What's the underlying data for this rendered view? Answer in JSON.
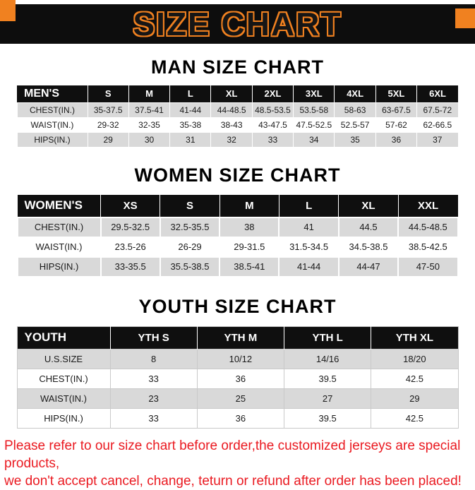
{
  "banner": {
    "title": "SIZE CHART"
  },
  "sections": [
    {
      "heading": "MAN SIZE CHART",
      "table": {
        "header": [
          "MEN'S",
          "S",
          "M",
          "L",
          "XL",
          "2XL",
          "3XL",
          "4XL",
          "5XL",
          "6XL"
        ],
        "rows": [
          [
            "CHEST(IN.)",
            "35-37.5",
            "37.5-41",
            "41-44",
            "44-48.5",
            "48.5-53.5",
            "53.5-58",
            "58-63",
            "63-67.5",
            "67.5-72"
          ],
          [
            "WAIST(IN.)",
            "29-32",
            "32-35",
            "35-38",
            "38-43",
            "43-47.5",
            "47.5-52.5",
            "52.5-57",
            "57-62",
            "62-66.5"
          ],
          [
            "HIPS(IN.)",
            "29",
            "30",
            "31",
            "32",
            "33",
            "34",
            "35",
            "36",
            "37"
          ]
        ]
      }
    },
    {
      "heading": "WOMEN SIZE CHART",
      "table": {
        "header": [
          "WOMEN'S",
          "XS",
          "S",
          "M",
          "L",
          "XL",
          "XXL"
        ],
        "rows": [
          [
            "CHEST(IN.)",
            "29.5-32.5",
            "32.5-35.5",
            "38",
            "41",
            "44.5",
            "44.5-48.5"
          ],
          [
            "WAIST(IN.)",
            "23.5-26",
            "26-29",
            "29-31.5",
            "31.5-34.5",
            "34.5-38.5",
            "38.5-42.5"
          ],
          [
            "HIPS(IN.)",
            "33-35.5",
            "35.5-38.5",
            "38.5-41",
            "41-44",
            "44-47",
            "47-50"
          ]
        ]
      }
    },
    {
      "heading": "YOUTH SIZE CHART",
      "table": {
        "header": [
          "YOUTH",
          "YTH S",
          "YTH M",
          "YTH L",
          "YTH XL"
        ],
        "rows": [
          [
            "U.S.SIZE",
            "8",
            "10/12",
            "14/16",
            "18/20"
          ],
          [
            "CHEST(IN.)",
            "33",
            "36",
            "39.5",
            "42.5"
          ],
          [
            "WAIST(IN.)",
            "23",
            "25",
            "27",
            "29"
          ],
          [
            "HIPS(IN.)",
            "33",
            "36",
            "39.5",
            "42.5"
          ]
        ]
      }
    }
  ],
  "footer": {
    "line1": "Please refer to our size chart before order,the customized jerseys are special products,",
    "line2": "we don't accept cancel, change, teturn or refund after order has been placed!"
  },
  "colors": {
    "accent_orange": "#F08120",
    "banner_black": "#0D0D0D",
    "row_gray": "#D9D9D9",
    "note_red": "#EA1A21"
  }
}
